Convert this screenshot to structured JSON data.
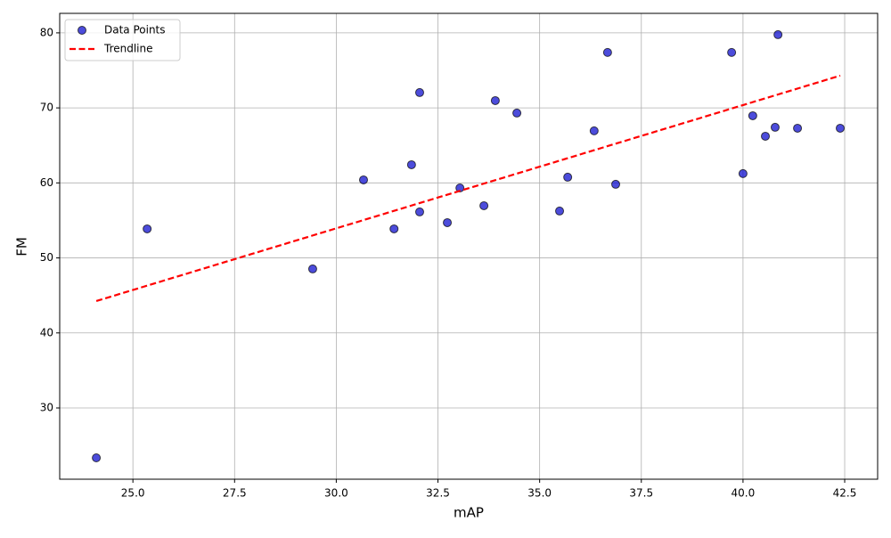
{
  "chart_data": {
    "type": "scatter",
    "xlabel": "mAP",
    "ylabel": "FM",
    "xlim": [
      23.2,
      43.31
    ],
    "ylim": [
      20.5,
      82.6
    ],
    "xticks": [
      {
        "value": 25,
        "label": "25.0"
      },
      27.5,
      {
        "value": 30,
        "label": "30.0"
      },
      32.5,
      {
        "value": 35,
        "label": "35.0"
      },
      37.5,
      {
        "value": 40,
        "label": "40.0"
      },
      42.5
    ],
    "yticks": [
      30,
      40,
      50,
      60,
      70,
      80
    ],
    "grid": true,
    "legend": "upper left",
    "series": [
      {
        "name": "Data Points",
        "type": "scatter",
        "color": "#0000cc",
        "x": [
          24.1,
          25.35,
          29.42,
          30.67,
          31.42,
          31.85,
          32.05,
          32.05,
          32.73,
          33.04,
          33.63,
          33.91,
          34.44,
          35.49,
          35.69,
          36.34,
          36.67,
          36.87,
          39.72,
          40.0,
          40.24,
          40.55,
          40.79,
          40.86,
          41.34,
          42.39
        ],
        "values": [
          23.35,
          53.87,
          48.53,
          60.4,
          53.87,
          62.42,
          72.04,
          56.13,
          54.7,
          59.33,
          56.96,
          70.97,
          69.31,
          56.25,
          60.76,
          66.94,
          77.39,
          59.81,
          77.39,
          61.24,
          68.95,
          66.22,
          67.41,
          79.76,
          67.29,
          67.29
        ]
      },
      {
        "name": "Trendline",
        "type": "line",
        "style": "dashed",
        "color": "#ff0000",
        "x": [
          24.1,
          42.39
        ],
        "values": [
          44.25,
          74.3
        ]
      }
    ]
  }
}
